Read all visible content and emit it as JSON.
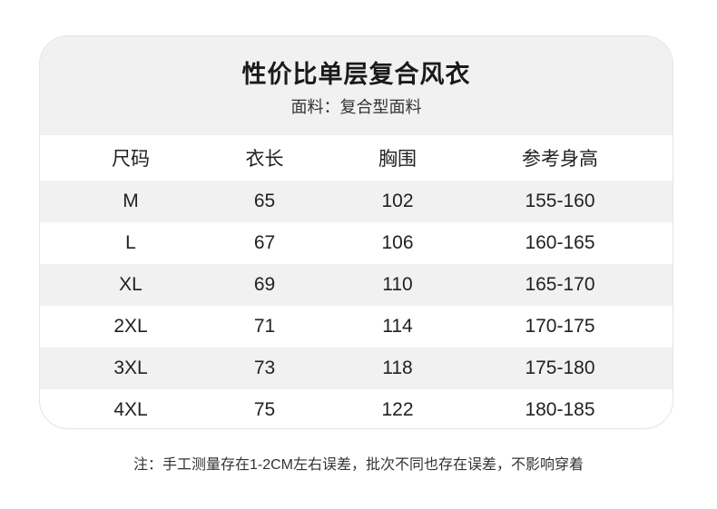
{
  "header": {
    "title": "性价比单层复合风衣",
    "subtitle": "面料：复合型面料"
  },
  "table": {
    "columns": [
      "尺码",
      "衣长",
      "胸围",
      "参考身高"
    ],
    "rows": [
      [
        "M",
        "65",
        "102",
        "155-160"
      ],
      [
        "L",
        "67",
        "106",
        "160-165"
      ],
      [
        "XL",
        "69",
        "110",
        "165-170"
      ],
      [
        "2XL",
        "71",
        "114",
        "170-175"
      ],
      [
        "3XL",
        "73",
        "118",
        "175-180"
      ],
      [
        "4XL",
        "75",
        "122",
        "180-185"
      ]
    ]
  },
  "note": "注：手工测量存在1-2CM左右误差，批次不同也存在误差，不影响穿着",
  "colors": {
    "header_bg": "#f1f1f1",
    "stripe_bg": "#f1f1f1"
  }
}
